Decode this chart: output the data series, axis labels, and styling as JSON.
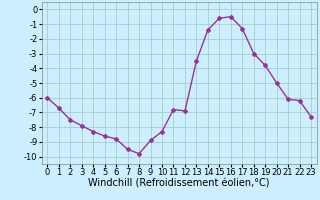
{
  "x": [
    0,
    1,
    2,
    3,
    4,
    5,
    6,
    7,
    8,
    9,
    10,
    11,
    12,
    13,
    14,
    15,
    16,
    17,
    18,
    19,
    20,
    21,
    22,
    23
  ],
  "y": [
    -6.0,
    -6.7,
    -7.5,
    -7.9,
    -8.3,
    -8.6,
    -8.8,
    -9.5,
    -9.8,
    -8.9,
    -8.3,
    -6.8,
    -6.9,
    -3.5,
    -1.4,
    -0.6,
    -0.5,
    -1.3,
    -3.0,
    -3.8,
    -5.0,
    -6.1,
    -6.2,
    -7.3
  ],
  "line_color": "#993399",
  "marker": "D",
  "marker_size": 2.0,
  "line_width": 1.0,
  "bg_color": "#cceeff",
  "grid_color": "#99ccbb",
  "xlabel": "Windchill (Refroidissement éolien,°C)",
  "xlabel_fontsize": 7.0,
  "xlim": [
    -0.5,
    23.5
  ],
  "ylim": [
    -10.5,
    0.5
  ],
  "yticks": [
    0,
    -1,
    -2,
    -3,
    -4,
    -5,
    -6,
    -7,
    -8,
    -9,
    -10
  ],
  "xticks": [
    0,
    1,
    2,
    3,
    4,
    5,
    6,
    7,
    8,
    9,
    10,
    11,
    12,
    13,
    14,
    15,
    16,
    17,
    18,
    19,
    20,
    21,
    22,
    23
  ],
  "tick_fontsize": 6.0
}
